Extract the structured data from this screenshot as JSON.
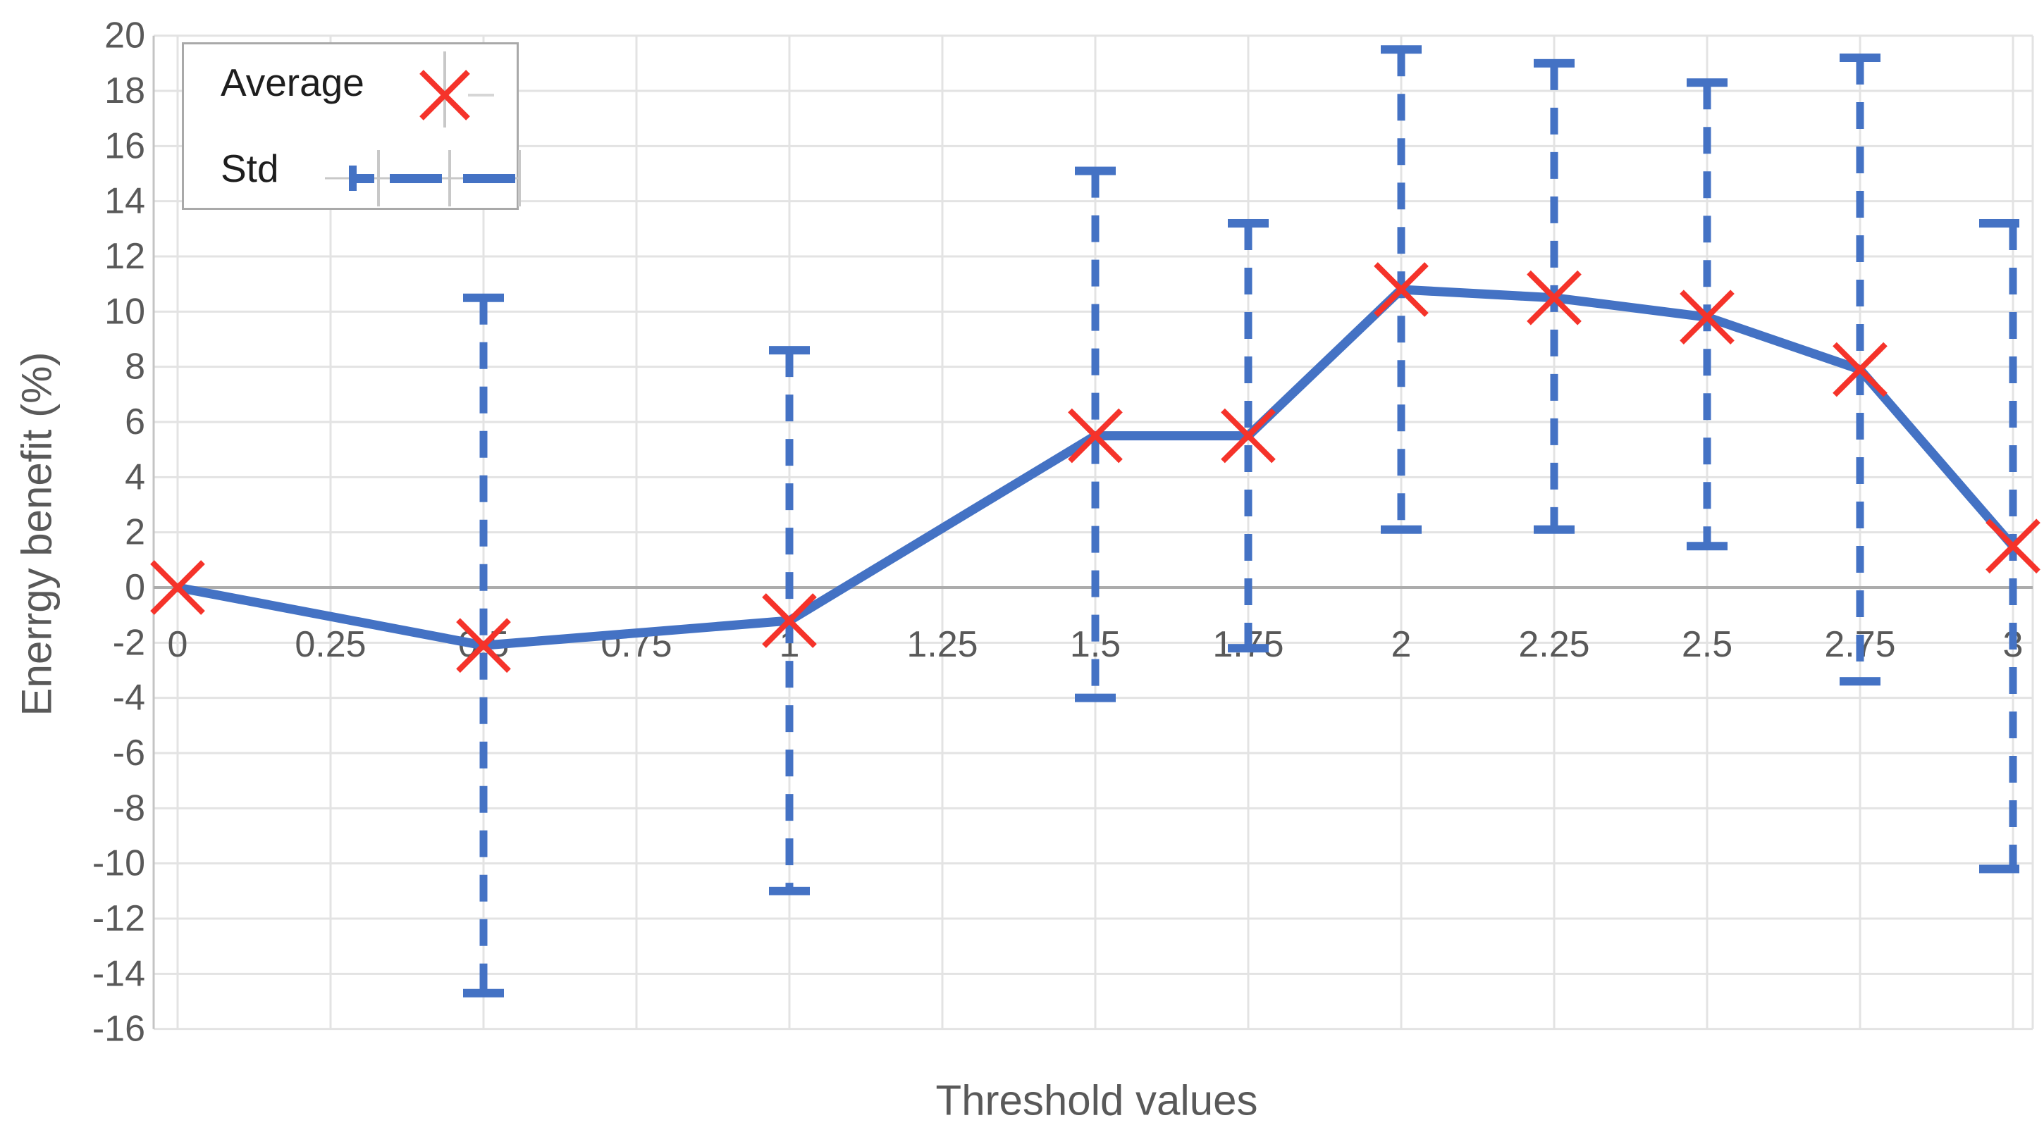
{
  "chart_data": {
    "type": "line",
    "title": "",
    "xlabel": "Threshold values",
    "ylabel": "Enerrgy benefit (%)",
    "xlim": [
      0,
      3
    ],
    "ylim": [
      -16,
      20
    ],
    "grid": true,
    "legend_position": "top-left",
    "x_tick_values": [
      0,
      0.25,
      0.5,
      0.75,
      1,
      1.25,
      1.5,
      1.75,
      2,
      2.25,
      2.5,
      2.75,
      3
    ],
    "x_tick_labels": [
      "0",
      "0.25",
      "0.5",
      "0.75",
      "1",
      "1.25",
      "1.5",
      "1.75",
      "2",
      "2.25",
      "2.5",
      "2.75",
      "3"
    ],
    "y_ticks": [
      20,
      18,
      16,
      14,
      12,
      10,
      8,
      6,
      4,
      2,
      0,
      -2,
      -4,
      -6,
      -8,
      -10,
      -12,
      -14,
      -16
    ],
    "series": [
      {
        "name": "Average",
        "type": "line-with-markers",
        "marker": "x",
        "x": [
          0,
          0.5,
          1,
          1.5,
          1.75,
          2,
          2.25,
          2.5,
          2.75,
          3
        ],
        "y": [
          0,
          -2.1,
          -1.2,
          5.5,
          5.5,
          10.8,
          10.5,
          9.8,
          7.9,
          1.5
        ]
      },
      {
        "name": "Std",
        "type": "errorbar",
        "style": "dashed",
        "x": [
          0.5,
          1,
          1.5,
          1.75,
          2,
          2.25,
          2.5,
          2.75,
          3
        ],
        "upper": [
          10.5,
          8.6,
          15.1,
          13.2,
          19.5,
          19.0,
          18.3,
          19.2,
          13.2
        ],
        "lower": [
          -14.7,
          -11.0,
          -4.0,
          -2.2,
          2.1,
          2.1,
          1.5,
          -3.4,
          -10.2
        ]
      }
    ]
  },
  "legend": {
    "items": [
      {
        "label": "Average",
        "marker": "red-x-marker"
      },
      {
        "label": "Std",
        "marker": "blue-dashed-errorbar"
      }
    ]
  },
  "colors": {
    "series_blue": "#4472C4",
    "marker_red": "#f5332a",
    "gridline": "#e3e3e3",
    "zero_axis": "#acacac",
    "y_axis_line": "#c4c4c4",
    "tick_text": "#595959",
    "legend_border": "#a9a9a9",
    "legend_text": "#1e1e1e",
    "legend_gray": "#c8c8c8"
  }
}
